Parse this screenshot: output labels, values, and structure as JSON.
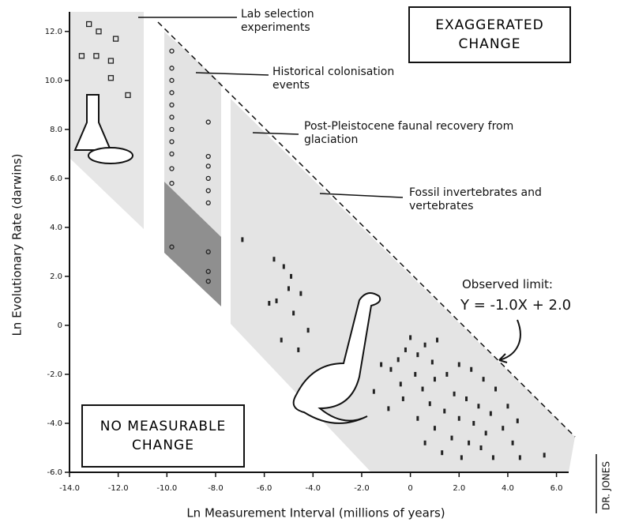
{
  "chart_data": {
    "type": "scatter",
    "xlabel": "Ln Measurement Interval (millions of years)",
    "ylabel": "Ln Evolutionary Rate (darwins)",
    "xlim": [
      -14,
      6.5
    ],
    "ylim": [
      -6,
      12.8
    ],
    "xticks": [
      {
        "value": -14,
        "label": "-14.0"
      },
      {
        "value": -12,
        "label": "-12.0"
      },
      {
        "value": -10,
        "label": "-10.0"
      },
      {
        "value": -8,
        "label": "-8.0"
      },
      {
        "value": -6,
        "label": "-6.0"
      },
      {
        "value": -4,
        "label": "-4.0"
      },
      {
        "value": -2,
        "label": "-2.0"
      },
      0,
      {
        "value": 2,
        "label": "2.0"
      },
      {
        "value": 4,
        "label": "4.0"
      },
      {
        "value": 6,
        "label": "6.0"
      }
    ],
    "yticks": [
      {
        "value": -6,
        "label": "-6.0"
      },
      {
        "value": -4,
        "label": "-4.0"
      },
      {
        "value": -2,
        "label": "-2.0"
      },
      0,
      {
        "value": 2,
        "label": "2.0"
      },
      {
        "value": 4,
        "label": "4.0"
      },
      {
        "value": 6,
        "label": "6.0"
      },
      {
        "value": 8,
        "label": "8.0"
      },
      {
        "value": 10,
        "label": "10.0"
      },
      {
        "value": 12,
        "label": "12.0"
      }
    ],
    "series": [
      {
        "name": "Lab selection experiments",
        "color": "#222222",
        "x": [
          -13.2,
          -12.8,
          -12.1,
          -13.5,
          -12.9,
          -12.3,
          -12.3,
          -11.6
        ],
        "y": [
          12.3,
          12.0,
          11.7,
          11.0,
          11.0,
          10.8,
          10.1,
          9.4
        ]
      },
      {
        "name": "Historical colonisation events",
        "color": "#222222",
        "x": [
          -9.8,
          -9.8,
          -9.8,
          -9.8,
          -9.8,
          -9.8,
          -9.8,
          -9.8,
          -9.8,
          -9.8,
          -9.8,
          -9.8,
          -8.3,
          -8.3,
          -8.3,
          -8.3,
          -8.3,
          -8.3,
          -8.3,
          -8.3,
          -8.3
        ],
        "y": [
          11.2,
          10.5,
          10.0,
          9.5,
          9.0,
          8.5,
          8.0,
          7.5,
          7.0,
          6.4,
          5.8,
          3.2,
          8.3,
          6.9,
          6.5,
          6.0,
          5.5,
          5.0,
          3.0,
          2.2,
          1.8
        ]
      },
      {
        "name": "Post-Pleistocene faunal recovery from glaciation",
        "color": "#222222",
        "x": [
          -6.9,
          -5.6,
          -5.2,
          -4.9,
          -5.0,
          -4.5,
          -5.5,
          -4.8,
          -5.8,
          -4.2,
          -5.3,
          -4.6
        ],
        "y": [
          3.5,
          2.7,
          2.4,
          2.0,
          1.5,
          1.3,
          1.0,
          0.5,
          0.9,
          -0.2,
          -0.6,
          -1.0
        ]
      },
      {
        "name": "Fossil invertebrates and vertebrates",
        "color": "#222222",
        "x": [
          -1.2,
          -0.8,
          -0.5,
          -0.2,
          0,
          0.3,
          0.6,
          0.9,
          1.1,
          0.2,
          -0.4,
          0.5,
          1.0,
          1.5,
          2.0,
          2.5,
          3.0,
          3.5,
          1.8,
          2.3,
          2.8,
          3.3,
          4.0,
          4.4,
          0.8,
          1.4,
          2.0,
          2.6,
          3.1,
          3.8,
          0.3,
          1.0,
          1.7,
          2.4,
          2.9,
          0.6,
          1.3,
          2.1,
          3.4,
          4.5,
          5.5,
          -0.3,
          -1.5,
          -0.9,
          4.2
        ],
        "y": [
          -1.6,
          -1.8,
          -1.4,
          -1.0,
          -0.5,
          -1.2,
          -0.8,
          -1.5,
          -0.6,
          -2.0,
          -2.4,
          -2.6,
          -2.2,
          -2.0,
          -1.6,
          -1.8,
          -2.2,
          -2.6,
          -2.8,
          -3.0,
          -3.3,
          -3.6,
          -3.3,
          -3.9,
          -3.2,
          -3.5,
          -3.8,
          -4.0,
          -4.4,
          -4.2,
          -3.8,
          -4.2,
          -4.6,
          -4.8,
          -5.0,
          -4.8,
          -5.2,
          -5.4,
          -5.4,
          -5.4,
          -5.3,
          -3.0,
          -2.7,
          -3.4,
          -4.8
        ]
      }
    ],
    "annotations": {
      "exaggerated": "EXAGGERATED CHANGE",
      "no_change": "NO MEASURABLE CHANGE",
      "limit_label": "Observed limit:",
      "limit_equation": "Y = -1.0X + 2.0",
      "signature": "DR. JONES"
    }
  }
}
